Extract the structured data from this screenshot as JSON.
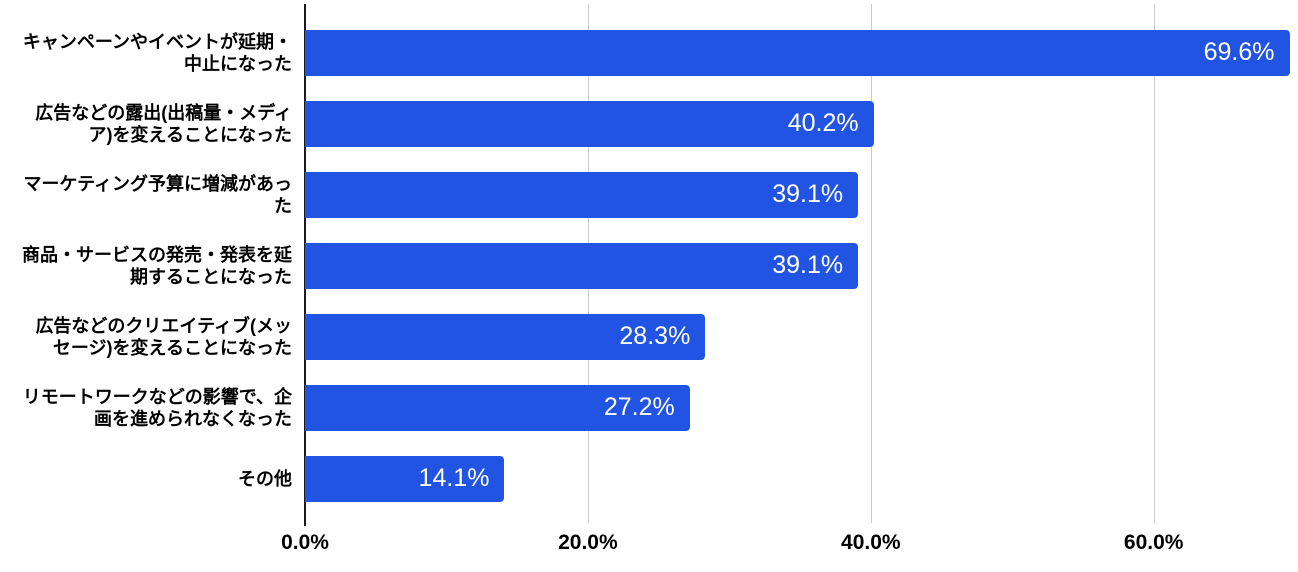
{
  "colors": {
    "accent": "#2254e4",
    "gridline": "#cccccc",
    "axis": "#1a1a1a",
    "text": "#000000",
    "value_text": "#ffffff",
    "background": "#ffffff"
  },
  "chart_data": {
    "type": "bar",
    "orientation": "horizontal",
    "title": "",
    "xlabel": "",
    "ylabel": "",
    "xlim": [
      0,
      70.2
    ],
    "grid": true,
    "legend": false,
    "value_format": "percent_one_decimal",
    "categories": [
      "キャンペーンやイベントが延期・中止になった",
      "広告などの露出(出稿量・メディア)を変えることになった",
      "マーケティング予算に増減があった",
      "商品・サービスの発売・発表を延期することになった",
      "広告などのクリエイティブ(メッセージ)を変えることになった",
      "リモートワークなどの影響で、企画を進められなくなった",
      "その他"
    ],
    "values": [
      69.6,
      40.2,
      39.1,
      39.1,
      28.3,
      27.2,
      14.1
    ],
    "rows": [
      {
        "label": "キャンペーンやイベントが延期・\n中止になった",
        "value": 69.6,
        "value_label": "69.6%"
      },
      {
        "label": "広告などの露出(出稿量・メディ\nア)を変えることになった",
        "value": 40.2,
        "value_label": "40.2%"
      },
      {
        "label": "マーケティング予算に増減があっ\nた",
        "value": 39.1,
        "value_label": "39.1%"
      },
      {
        "label": "商品・サービスの発売・発表を延\n期することになった",
        "value": 39.1,
        "value_label": "39.1%"
      },
      {
        "label": "広告などのクリエイティブ(メッ\nセージ)を変えることになった",
        "value": 28.3,
        "value_label": "28.3%"
      },
      {
        "label": "リモートワークなどの影響で、企\n画を進められなくなった",
        "value": 27.2,
        "value_label": "27.2%"
      },
      {
        "label": "その他",
        "value": 14.1,
        "value_label": "14.1%"
      }
    ],
    "x_ticks": [
      {
        "value": 0,
        "label": "0.0%"
      },
      {
        "value": 20,
        "label": "20.0%"
      },
      {
        "value": 40,
        "label": "40.0%"
      },
      {
        "value": 60,
        "label": "60.0%"
      }
    ]
  }
}
